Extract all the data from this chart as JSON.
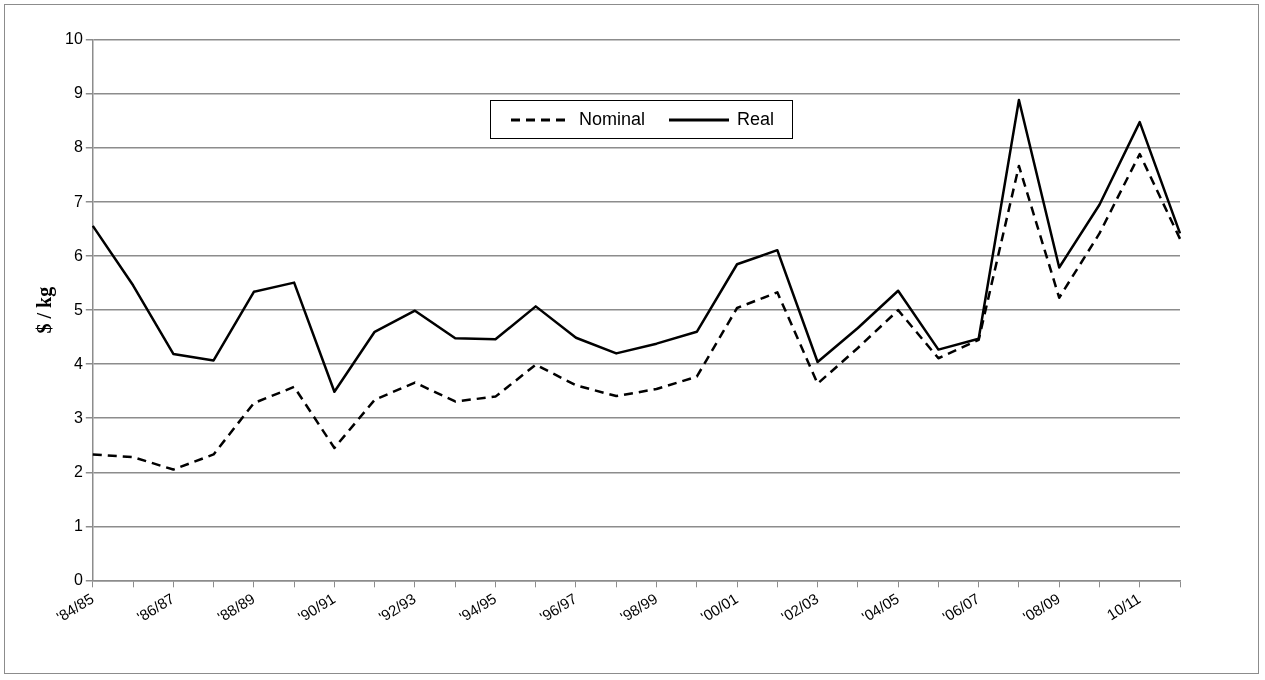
{
  "chart_data": {
    "type": "line",
    "ylabel": "$ / kg",
    "categories": [
      "'84/85",
      null,
      "'86/87",
      null,
      "'88/89",
      null,
      "'90/91",
      null,
      "'92/93",
      null,
      "'94/95",
      null,
      "'96/97",
      null,
      "'98/99",
      null,
      "'00/01",
      null,
      "'02/03",
      null,
      "'04/05",
      null,
      "'06/07",
      null,
      "'08/09",
      null,
      "10/11",
      null
    ],
    "series": [
      {
        "name": "Nominal",
        "color": "#000000",
        "line_style": "dashed",
        "values": [
          2.33,
          2.28,
          2.05,
          2.33,
          3.28,
          3.58,
          2.45,
          3.34,
          3.66,
          3.31,
          3.4,
          3.99,
          3.61,
          3.41,
          3.54,
          3.77,
          5.04,
          5.33,
          3.64,
          4.3,
          5.0,
          4.11,
          4.45,
          7.67,
          5.23,
          6.42,
          7.89,
          6.32
        ]
      },
      {
        "name": "Real",
        "color": "#000000",
        "line_style": "solid",
        "values": [
          6.56,
          5.46,
          4.19,
          4.07,
          5.34,
          5.51,
          3.49,
          4.6,
          4.99,
          4.48,
          4.46,
          5.07,
          4.49,
          4.2,
          4.38,
          4.6,
          5.85,
          6.11,
          4.04,
          4.67,
          5.36,
          4.27,
          4.47,
          8.89,
          5.79,
          6.95,
          8.48,
          6.42
        ]
      }
    ],
    "ylim": [
      0,
      10
    ],
    "yticks": [
      0,
      1,
      2,
      3,
      4,
      5,
      6,
      7,
      8,
      9,
      10
    ],
    "grid": "y",
    "legend": "top",
    "marker": "none"
  }
}
